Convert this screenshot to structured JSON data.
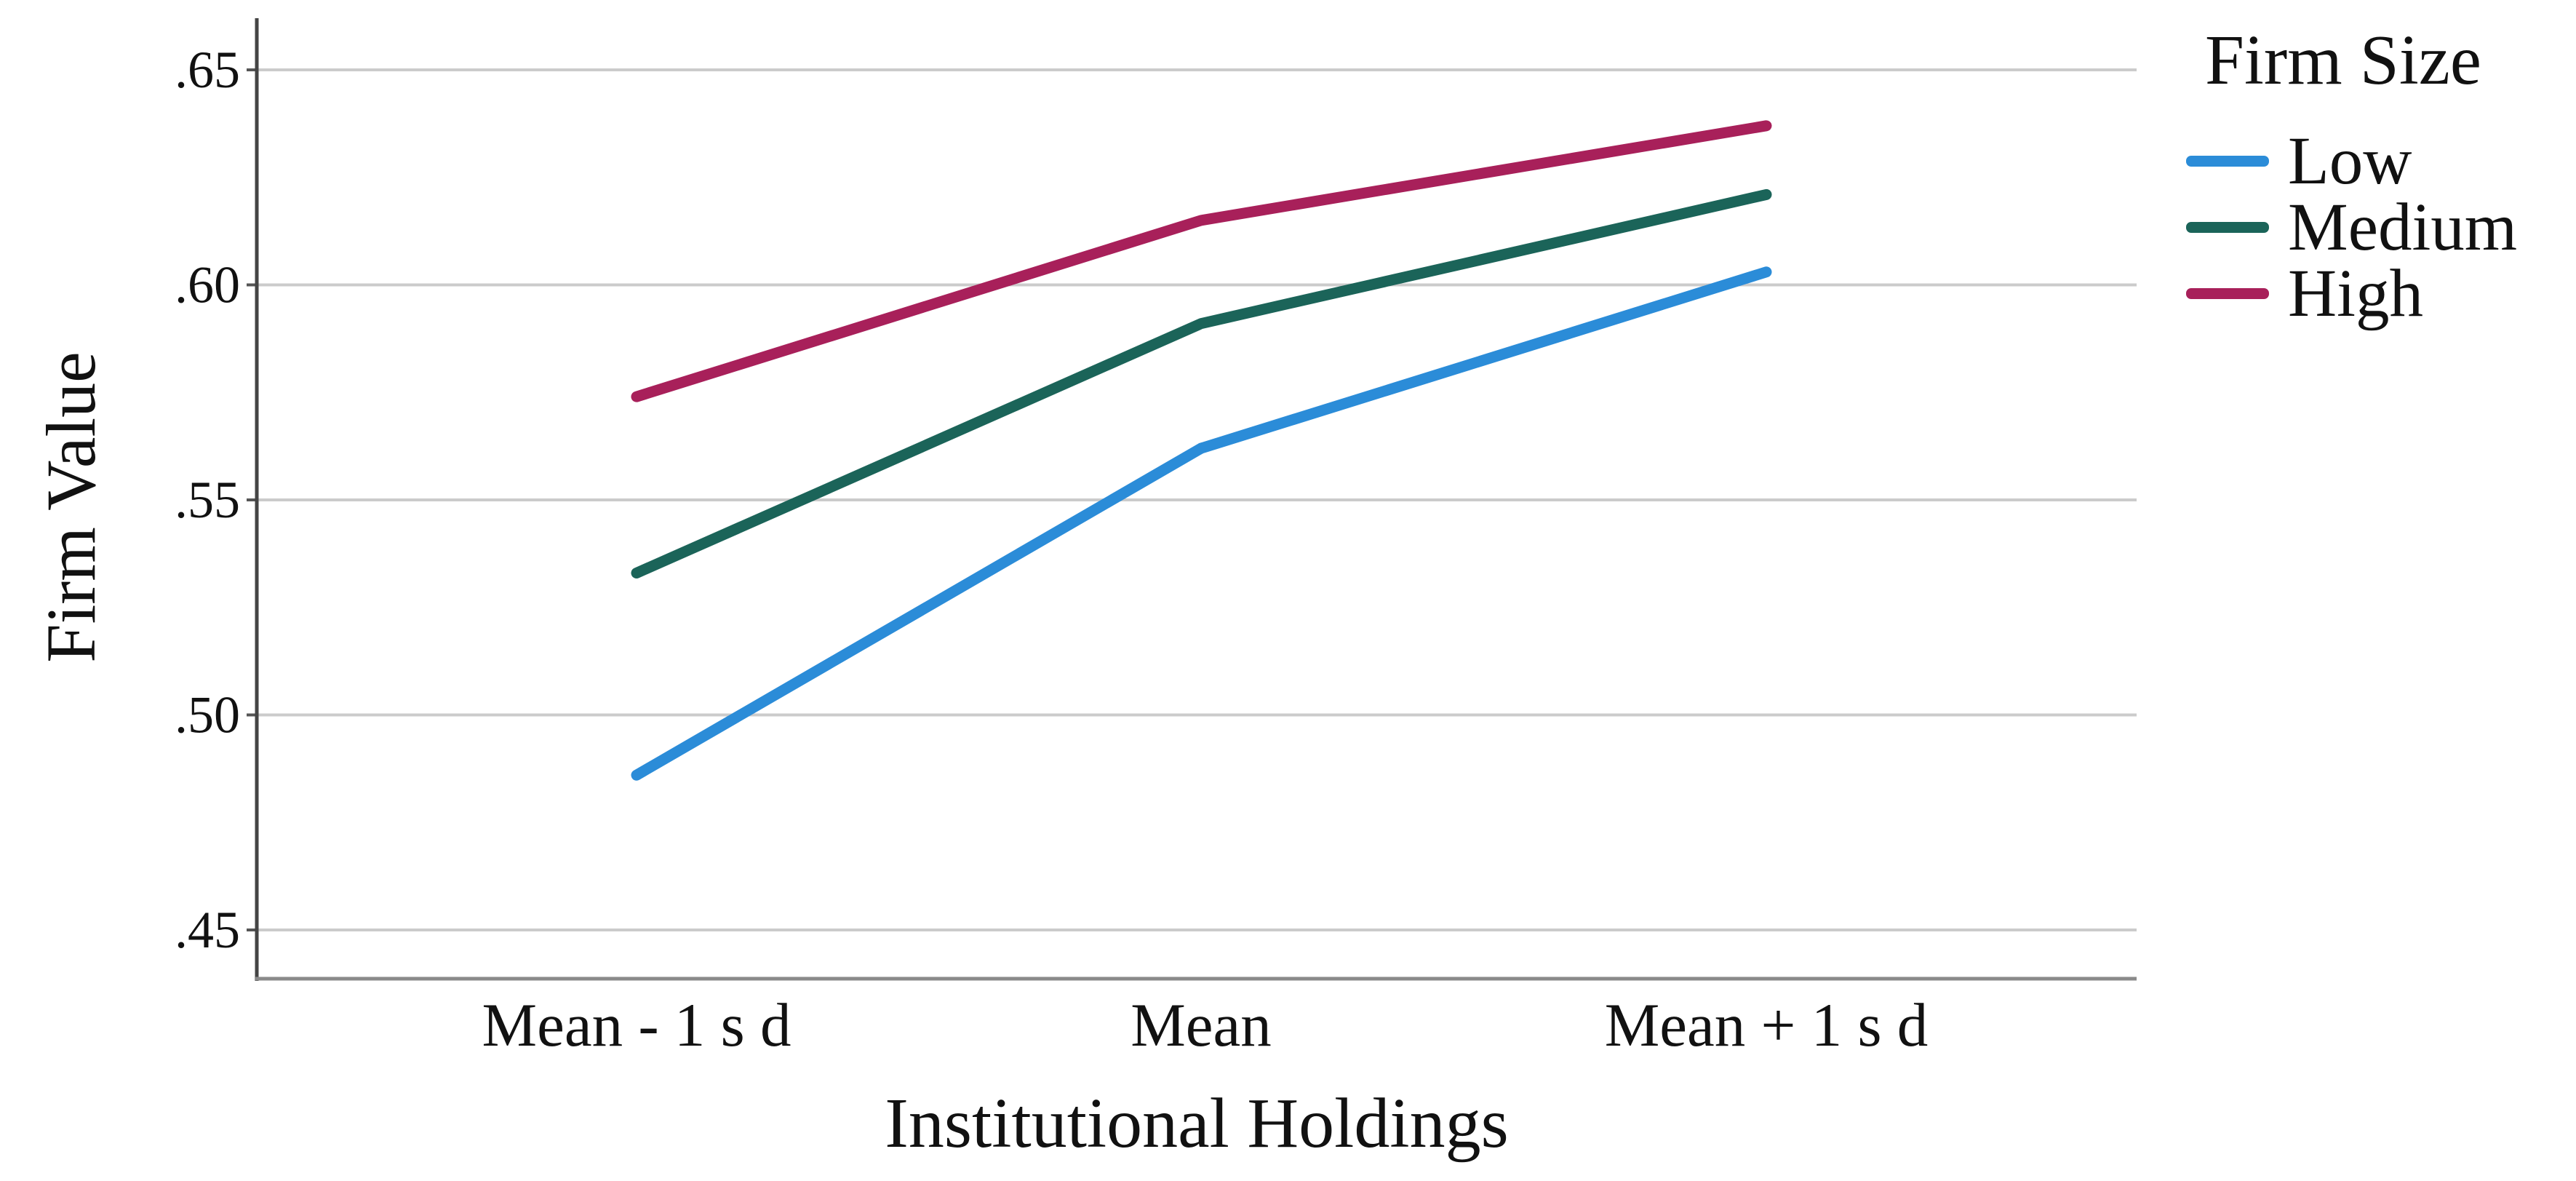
{
  "chart_data": {
    "type": "line",
    "title": "",
    "categories": [
      "Mean - 1 s d",
      "Mean",
      "Mean + 1 s d"
    ],
    "series": [
      {
        "name": "Low",
        "values": [
          0.486,
          0.562,
          0.603
        ],
        "color": "#2b8cd8"
      },
      {
        "name": "Medium",
        "values": [
          0.533,
          0.591,
          0.621
        ],
        "color": "#1b6459"
      },
      {
        "name": "High",
        "values": [
          0.574,
          0.615,
          0.637
        ],
        "color": "#a8205a"
      }
    ],
    "xlabel": "Institutional Holdings",
    "ylabel": "Firm Value",
    "yticks": [
      {
        "label": ".45",
        "value": 0.45
      },
      {
        "label": ".50",
        "value": 0.5
      },
      {
        "label": ".55",
        "value": 0.55
      },
      {
        "label": ".60",
        "value": 0.6
      },
      {
        "label": ".65",
        "value": 0.65
      }
    ],
    "ylim": [
      0.439,
      0.662
    ],
    "grid": true,
    "legend": {
      "title": "Firm Size",
      "position": "right-top"
    }
  },
  "colors": {
    "gridline": "#cbcbcb",
    "y_axis": "#444444",
    "x_axis": "#8a8a8a",
    "tick": "#555555",
    "text": "#111111"
  }
}
